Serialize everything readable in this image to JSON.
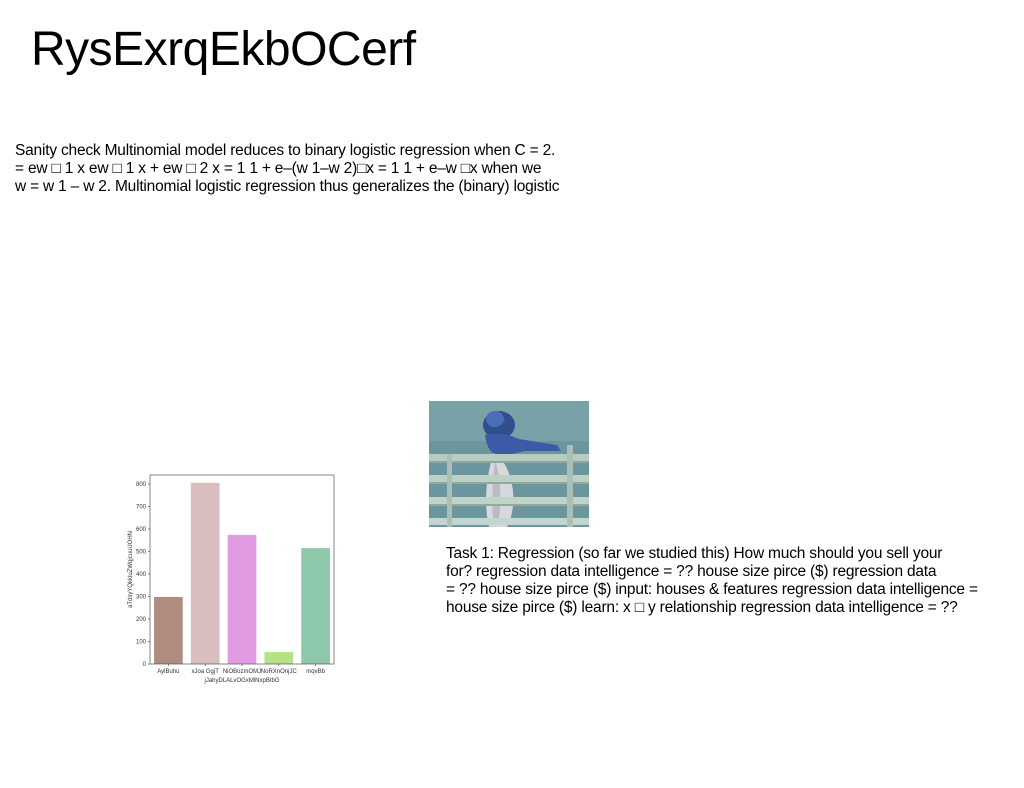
{
  "slide": {
    "title": "RysExrqEkbOCerf",
    "paragraph1": {
      "lines": [
        "Sanity check Multinomial model reduces to binary logistic regression when C = 2.",
        "= ew □ 1 x ew □ 1 x + ew □ 2 x = 1 1 + e–(w 1–w 2)□x = 1 1 + e–w □x when we",
        "w = w 1 – w 2. Multinomial logistic regression thus generalizes the (binary) logistic"
      ]
    },
    "paragraph2": {
      "lines": [
        "Task 1: Regression (so far we studied this) How much should you sell your",
        "for? regression data intelligence = ?? house size pirce ($) regression data",
        "= ?? house size pirce ($) input: houses & features regression data intelligence =",
        "house size pirce ($) learn: x □ y relationship regression data intelligence = ??"
      ]
    }
  },
  "photo": {
    "icon": "photo-person-on-railing"
  },
  "chart_data": {
    "type": "bar",
    "categories": [
      "AylBuhu",
      "xJoa GgjT",
      "NiOBozmOMJ",
      "NoRXnOnjJC",
      "mqvBb"
    ],
    "values": [
      298,
      805,
      574,
      53,
      515
    ],
    "colors": [
      "#b08c80",
      "#d9bec0",
      "#e09be3",
      "#b5e286",
      "#8dc8ab"
    ],
    "title": "",
    "xlabel": "jJahyDLALvOGxMlNxpBIbG",
    "ylabel": "aTdsyYQkkluZWqjcuuUOHN",
    "ylim": [
      0,
      840
    ],
    "yticks": [
      0,
      100,
      200,
      300,
      400,
      500,
      600,
      700,
      800
    ],
    "grid": false
  }
}
